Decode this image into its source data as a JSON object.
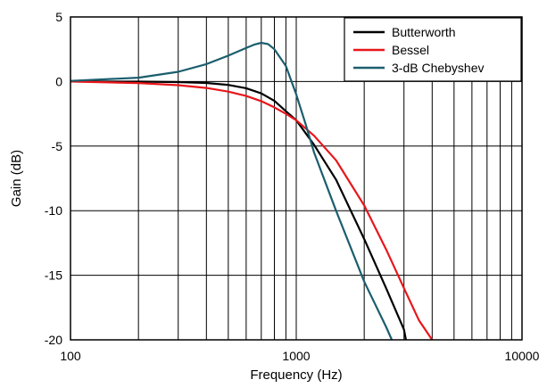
{
  "chart_data": {
    "type": "line",
    "title": "",
    "xlabel": "Frequency (Hz)",
    "ylabel": "Gain (dB)",
    "xscale": "log",
    "xlim": [
      100,
      10000
    ],
    "ylim": [
      -20,
      5
    ],
    "x_ticks": [
      100,
      1000,
      10000
    ],
    "x_tick_labels": [
      "100",
      "1000",
      "10000"
    ],
    "y_ticks": [
      5,
      0,
      -5,
      -10,
      -15,
      -20
    ],
    "y_tick_labels": [
      "5",
      "0",
      "-5",
      "-10",
      "-15",
      "-20"
    ],
    "grid": true,
    "legend": {
      "position": "top-right"
    },
    "series": [
      {
        "name": "Butterworth",
        "color": "#000000",
        "points": [
          [
            100,
            0.0
          ],
          [
            200,
            -0.01
          ],
          [
            300,
            -0.04
          ],
          [
            400,
            -0.11
          ],
          [
            500,
            -0.26
          ],
          [
            600,
            -0.52
          ],
          [
            700,
            -0.92
          ],
          [
            800,
            -1.5
          ],
          [
            900,
            -2.3
          ],
          [
            1000,
            -3.0
          ],
          [
            1200,
            -4.9
          ],
          [
            1500,
            -7.6
          ],
          [
            2000,
            -12.2
          ],
          [
            2500,
            -16.0
          ],
          [
            3000,
            -19.2
          ],
          [
            3060,
            -20.0
          ]
        ]
      },
      {
        "name": "Bessel",
        "color": "#e8161b",
        "points": [
          [
            100,
            0.0
          ],
          [
            200,
            -0.12
          ],
          [
            300,
            -0.28
          ],
          [
            400,
            -0.5
          ],
          [
            500,
            -0.78
          ],
          [
            600,
            -1.12
          ],
          [
            700,
            -1.52
          ],
          [
            800,
            -2.0
          ],
          [
            900,
            -2.5
          ],
          [
            1000,
            -3.0
          ],
          [
            1200,
            -4.2
          ],
          [
            1500,
            -6.1
          ],
          [
            2000,
            -9.6
          ],
          [
            2500,
            -13.0
          ],
          [
            3000,
            -16.0
          ],
          [
            3500,
            -18.5
          ],
          [
            4000,
            -20.0
          ]
        ]
      },
      {
        "name": "3-dB Chebyshev",
        "color": "#1b5e6e",
        "points": [
          [
            100,
            0.05
          ],
          [
            200,
            0.3
          ],
          [
            300,
            0.75
          ],
          [
            400,
            1.35
          ],
          [
            500,
            2.0
          ],
          [
            600,
            2.6
          ],
          [
            650,
            2.85
          ],
          [
            700,
            3.0
          ],
          [
            750,
            2.9
          ],
          [
            800,
            2.5
          ],
          [
            900,
            1.2
          ],
          [
            1000,
            -1.0
          ],
          [
            1100,
            -3.3
          ],
          [
            1200,
            -5.5
          ],
          [
            1500,
            -10.0
          ],
          [
            2000,
            -15.5
          ],
          [
            2500,
            -19.0
          ],
          [
            2650,
            -20.0
          ]
        ]
      }
    ]
  }
}
